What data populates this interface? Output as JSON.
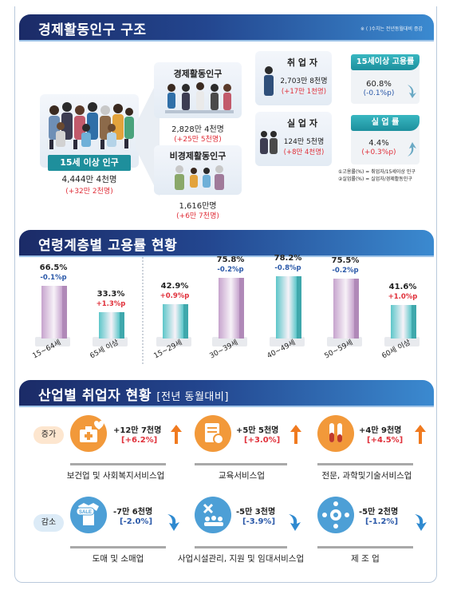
{
  "section1": {
    "title": "경제활동인구 구조",
    "note": "※ ( )수치는 전년동월대비 증감",
    "pop15": {
      "label": "15세 이상 인구",
      "value": "4,444만 4천명",
      "change": "(+32만 2천명)"
    },
    "active": {
      "label": "경제활동인구",
      "value": "2,828만 4천명",
      "change": "(+25만 5천명)"
    },
    "inactive": {
      "label": "비경제활동인구",
      "value": "1,616만명",
      "change": "(+6만 7천명)"
    },
    "employed": {
      "label": "취 업 자",
      "value": "2,703만 8천명",
      "change": "(+17만 1천명)"
    },
    "unemployed": {
      "label": "실 업 자",
      "value": "124만 5천명",
      "change": "(+8만 4천명)"
    },
    "emp_rate": {
      "label": "15세이상 고용률",
      "value": "60.8%",
      "change": "(-0.1%p)"
    },
    "unemp_rate": {
      "label": "실 업 률",
      "value": "4.4%",
      "change": "(+0.3%p)"
    },
    "footnote1": "①고용률(%) = 취업자/15세이상 인구",
    "footnote2": "②실업률(%) = 실업자/경제활동인구"
  },
  "section2": {
    "title": "연령계층별 고용률 현황",
    "chart_data": {
      "type": "bar",
      "categories": [
        "15~64세",
        "65세 이상",
        "15~29세",
        "30~39세",
        "40~49세",
        "50~59세",
        "60세 이상"
      ],
      "values": [
        66.5,
        33.3,
        42.9,
        75.8,
        78.2,
        75.5,
        41.6
      ],
      "value_labels": [
        "66.5%",
        "33.3%",
        "42.9%",
        "75.8%",
        "78.2%",
        "75.5%",
        "41.6%"
      ],
      "changes": [
        "-0.1%p",
        "+1.3%p",
        "+0.9%p",
        "-0.2%p",
        "-0.8%p",
        "-0.2%p",
        "+1.0%p"
      ],
      "title": "연령계층별 고용률 현황",
      "xlabel": "",
      "ylabel": ""
    },
    "colors": {
      "purple": "#c6a3cd",
      "teal": "#5cc6c9",
      "up": "#e0303a",
      "down": "#2a58a8"
    }
  },
  "section3": {
    "title": "산업별 취업자 현황",
    "subtitle": "[전년 동월대비]",
    "increase_tag": "증가",
    "decrease_tag": "감소",
    "increase": [
      {
        "name": "보건업 및 사회복지서비스업",
        "value": "+12만 7천명",
        "pct": "[+6.2%]",
        "icon": "medical-kit-icon"
      },
      {
        "name": "교육서비스업",
        "value": "+5만 5천명",
        "pct": "[+3.0%]",
        "icon": "certificate-icon"
      },
      {
        "name": "전문, 과학및기술서비스업",
        "value": "+4만 9천명",
        "pct": "[+4.5%]",
        "icon": "test-tube-icon"
      }
    ],
    "decrease": [
      {
        "name": "도매 및 소매업",
        "value": "-7만 6천명",
        "pct": "[-2.0%]",
        "icon": "sale-shirt-icon",
        "badge": "SALE"
      },
      {
        "name": "사업시설관리, 지원 및 임대서비스업",
        "value": "-5만 3천명",
        "pct": "[-3.9%]",
        "icon": "tools-people-icon"
      },
      {
        "name": "제 조 업",
        "value": "-5만 2천명",
        "pct": "[-1.2%]",
        "icon": "gear-network-icon"
      }
    ]
  }
}
